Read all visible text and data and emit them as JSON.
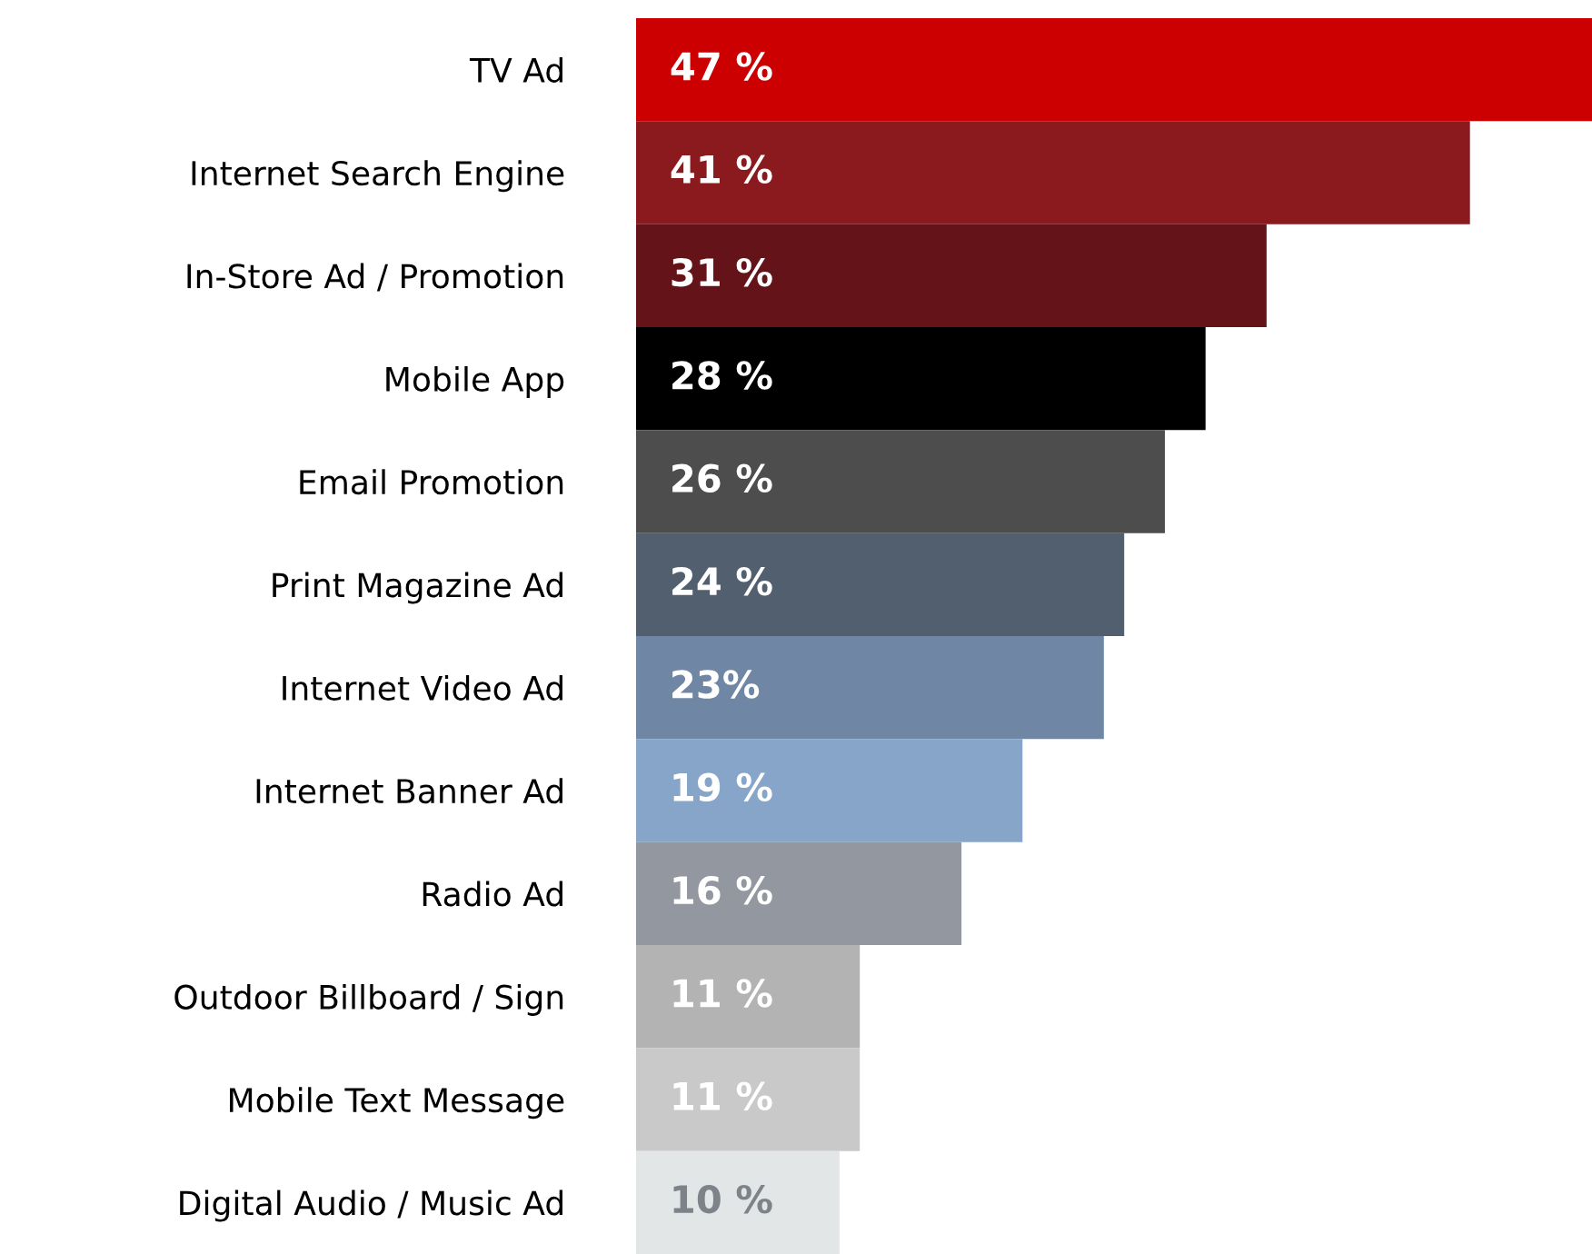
{
  "chart_data": {
    "type": "bar",
    "orientation": "horizontal",
    "categories": [
      "TV Ad",
      "Internet Search Engine",
      "In-Store Ad / Promotion",
      "Mobile App",
      "Email Promotion",
      "Print Magazine Ad",
      "Internet Video Ad",
      "Internet Banner Ad",
      "Radio Ad",
      "Outdoor Billboard / Sign",
      "Mobile Text Message",
      "Digital Audio / Music Ad"
    ],
    "values": [
      47,
      41,
      31,
      28,
      26,
      24,
      23,
      19,
      16,
      11,
      11,
      10
    ],
    "value_labels": [
      "47 %",
      "41 %",
      "31 %",
      "28 %",
      "26 %",
      "24 %",
      "23%",
      "19 %",
      "16 %",
      "11 %",
      "11 %",
      "10 %"
    ],
    "colors": [
      "#cc0000",
      "#8b1a1e",
      "#641418",
      "#000000",
      "#4d4d4d",
      "#525f6f",
      "#6f86a5",
      "#87a5c9",
      "#93979f",
      "#b3b3b3",
      "#c8c9c8",
      "#e3e6e6"
    ]
  }
}
